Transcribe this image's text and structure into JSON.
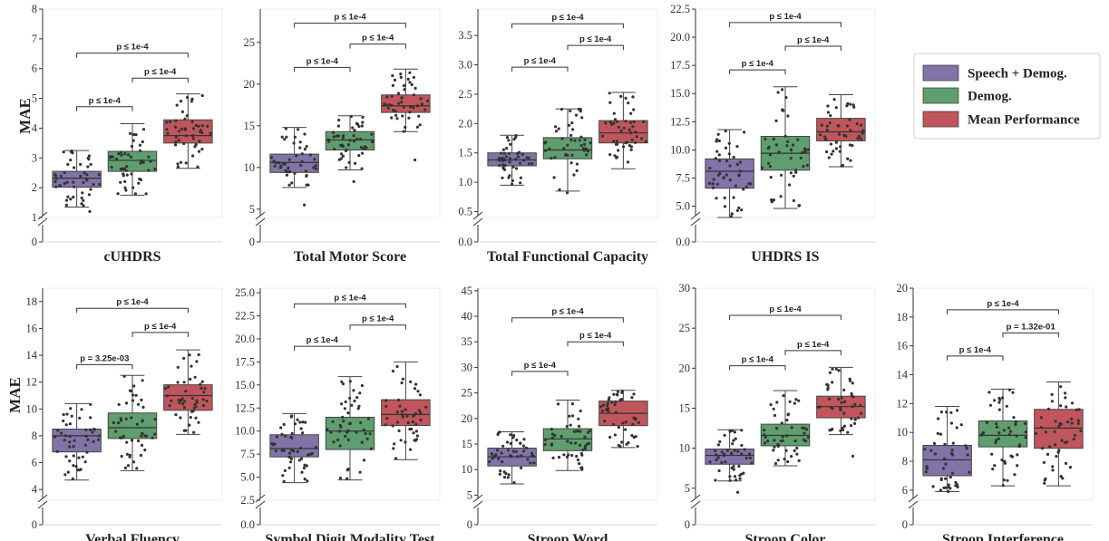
{
  "chart_data": {
    "type": "box",
    "series": [
      {
        "name": "Speech + Demog.",
        "color": "#8074a8"
      },
      {
        "name": "Demog.",
        "color": "#5f9e6e"
      },
      {
        "name": "Mean Performance",
        "color": "#c0565b"
      }
    ],
    "ylabel": "MAE",
    "panels": [
      {
        "title": "cUHDRS",
        "ylim": [
          1,
          8
        ],
        "yticks": [
          1,
          2,
          3,
          4,
          5,
          6,
          7,
          8
        ],
        "tick_fmt": 0,
        "boxes": [
          {
            "q1": 2.02,
            "med": 2.32,
            "q3": 2.55,
            "lo": 1.35,
            "hi": 3.25,
            "min": 1.2
          },
          {
            "q1": 2.55,
            "med": 2.92,
            "q3": 3.22,
            "lo": 1.75,
            "hi": 4.15,
            "min": 1.75
          },
          {
            "q1": 3.5,
            "med": 3.75,
            "q3": 4.28,
            "lo": 2.65,
            "hi": 5.15,
            "min": 2.65
          }
        ],
        "brackets": [
          {
            "from": 0,
            "to": 1,
            "y": 4.72,
            "label": "p ≤ 1e-4"
          },
          {
            "from": 1,
            "to": 2,
            "y": 5.68,
            "label": "p ≤ 1e-4"
          },
          {
            "from": 0,
            "to": 2,
            "y": 6.52,
            "label": "p ≤ 1e-4"
          }
        ]
      },
      {
        "title": "Total Motor Score",
        "ylim": [
          4,
          29
        ],
        "yticks": [
          5,
          10,
          15,
          20,
          25
        ],
        "tick_fmt": 0,
        "boxes": [
          {
            "q1": 9.4,
            "med": 10.6,
            "q3": 11.6,
            "lo": 7.6,
            "hi": 14.8,
            "min": 5.5
          },
          {
            "q1": 12.1,
            "med": 13.3,
            "q3": 14.3,
            "lo": 9.7,
            "hi": 16.2,
            "min": 8.3
          },
          {
            "q1": 16.6,
            "med": 17.4,
            "q3": 18.7,
            "lo": 14.3,
            "hi": 21.8,
            "min": 10.9
          }
        ],
        "brackets": [
          {
            "from": 0,
            "to": 1,
            "y": 22.0,
            "label": "p ≤ 1e-4"
          },
          {
            "from": 1,
            "to": 2,
            "y": 24.8,
            "label": "p ≤ 1e-4"
          },
          {
            "from": 0,
            "to": 2,
            "y": 27.3,
            "label": "p ≤ 1e-4"
          }
        ]
      },
      {
        "title": "Total Functional Capacity",
        "ylim": [
          0.4,
          3.95
        ],
        "yticks": [
          0.5,
          1.0,
          1.5,
          2.0,
          2.5,
          3.0,
          3.5
        ],
        "tick_fmt": 1,
        "boxes": [
          {
            "q1": 1.28,
            "med": 1.38,
            "q3": 1.5,
            "lo": 0.95,
            "hi": 1.8,
            "min": 0.95
          },
          {
            "q1": 1.4,
            "med": 1.55,
            "q3": 1.76,
            "lo": 0.85,
            "hi": 2.25,
            "min": 0.82
          },
          {
            "q1": 1.67,
            "med": 1.84,
            "q3": 2.05,
            "lo": 1.23,
            "hi": 2.53,
            "min": 1.23
          }
        ],
        "brackets": [
          {
            "from": 0,
            "to": 1,
            "y": 2.96,
            "label": "p ≤ 1e-4"
          },
          {
            "from": 1,
            "to": 2,
            "y": 3.33,
            "label": "p ≤ 1e-4"
          },
          {
            "from": 0,
            "to": 2,
            "y": 3.7,
            "label": "p ≤ 1e-4"
          }
        ]
      },
      {
        "title": "UHDRS IS",
        "ylim": [
          4,
          22.5
        ],
        "yticks": [
          5.0,
          7.5,
          10.0,
          12.5,
          15.0,
          17.5,
          20.0,
          22.5
        ],
        "tick_fmt": 1,
        "boxes": [
          {
            "q1": 6.6,
            "med": 8.1,
            "q3": 9.2,
            "lo": 4.0,
            "hi": 11.8,
            "min": 4.0
          },
          {
            "q1": 8.2,
            "med": 9.7,
            "q3": 11.2,
            "lo": 4.8,
            "hi": 15.6,
            "min": 4.8
          },
          {
            "q1": 10.8,
            "med": 11.6,
            "q3": 12.8,
            "lo": 8.5,
            "hi": 14.9,
            "min": 8.5
          }
        ],
        "brackets": [
          {
            "from": 0,
            "to": 1,
            "y": 17.1,
            "label": "p ≤ 1e-4"
          },
          {
            "from": 1,
            "to": 2,
            "y": 19.2,
            "label": "p ≤ 1e-4"
          },
          {
            "from": 0,
            "to": 2,
            "y": 21.3,
            "label": "p ≤ 1e-4"
          }
        ]
      },
      {
        "title": "Verbal Fluency",
        "ylim": [
          3.2,
          19
        ],
        "yticks": [
          4,
          6,
          8,
          10,
          12,
          14,
          16,
          18
        ],
        "tick_fmt": 0,
        "boxes": [
          {
            "q1": 6.8,
            "med": 8.0,
            "q3": 8.5,
            "lo": 4.7,
            "hi": 10.4,
            "min": 4.7
          },
          {
            "q1": 7.8,
            "med": 8.6,
            "q3": 9.7,
            "lo": 5.4,
            "hi": 12.5,
            "min": 5.4
          },
          {
            "q1": 9.9,
            "med": 11.0,
            "q3": 11.8,
            "lo": 8.1,
            "hi": 14.4,
            "min": 8.1
          }
        ],
        "brackets": [
          {
            "from": 0,
            "to": 1,
            "y": 13.3,
            "label": "p = 3.25e-03"
          },
          {
            "from": 1,
            "to": 2,
            "y": 15.7,
            "label": "p ≤ 1e-4"
          },
          {
            "from": 0,
            "to": 2,
            "y": 17.5,
            "label": "p ≤ 1e-4"
          }
        ]
      },
      {
        "title": "Symbol Digit Modality Test",
        "ylim": [
          2.5,
          25.5
        ],
        "yticks": [
          2.5,
          5.0,
          7.5,
          10.0,
          12.5,
          15.0,
          17.5,
          20.0,
          22.5,
          25.0
        ],
        "tick_fmt": 1,
        "boxes": [
          {
            "q1": 7.2,
            "med": 8.1,
            "q3": 9.6,
            "lo": 4.4,
            "hi": 11.9,
            "min": 4.4
          },
          {
            "q1": 8.0,
            "med": 10.0,
            "q3": 11.5,
            "lo": 4.7,
            "hi": 15.9,
            "min": 4.7
          },
          {
            "q1": 10.6,
            "med": 11.8,
            "q3": 13.4,
            "lo": 6.9,
            "hi": 17.5,
            "min": 6.9
          }
        ],
        "brackets": [
          {
            "from": 0,
            "to": 1,
            "y": 19.2,
            "label": "p ≤ 1e-4"
          },
          {
            "from": 1,
            "to": 2,
            "y": 21.5,
            "label": "p ≤ 1e-4"
          },
          {
            "from": 0,
            "to": 2,
            "y": 23.8,
            "label": "p ≤ 1e-4"
          }
        ]
      },
      {
        "title": "Stroop Word",
        "ylim": [
          4,
          45.5
        ],
        "yticks": [
          5,
          10,
          15,
          20,
          25,
          30,
          35,
          40,
          45
        ],
        "tick_fmt": 0,
        "boxes": [
          {
            "q1": 10.7,
            "med": 12.5,
            "q3": 14.2,
            "lo": 7.2,
            "hi": 17.4,
            "min": 7.2
          },
          {
            "q1": 13.7,
            "med": 16.0,
            "q3": 18.0,
            "lo": 9.8,
            "hi": 23.6,
            "min": 9.8
          },
          {
            "q1": 18.6,
            "med": 21.0,
            "q3": 23.4,
            "lo": 14.3,
            "hi": 25.5,
            "min": 14.3
          }
        ],
        "brackets": [
          {
            "from": 0,
            "to": 1,
            "y": 29.2,
            "label": "p ≤ 1e-4"
          },
          {
            "from": 1,
            "to": 2,
            "y": 35.0,
            "label": "p ≤ 1e-4"
          },
          {
            "from": 0,
            "to": 2,
            "y": 39.7,
            "label": "p ≤ 1e-4"
          }
        ]
      },
      {
        "title": "Stroop Color",
        "ylim": [
          3.5,
          30
        ],
        "yticks": [
          5,
          10,
          15,
          20,
          25,
          30
        ],
        "tick_fmt": 0,
        "boxes": [
          {
            "q1": 8.0,
            "med": 9.1,
            "q3": 9.9,
            "lo": 5.9,
            "hi": 12.3,
            "min": 4.5
          },
          {
            "q1": 10.3,
            "med": 11.6,
            "q3": 13.0,
            "lo": 7.8,
            "hi": 17.2,
            "min": 7.8
          },
          {
            "q1": 13.8,
            "med": 15.2,
            "q3": 16.5,
            "lo": 11.7,
            "hi": 20.1,
            "min": 9.0
          }
        ],
        "brackets": [
          {
            "from": 0,
            "to": 1,
            "y": 20.3,
            "label": "p ≤ 1e-4"
          },
          {
            "from": 1,
            "to": 2,
            "y": 22.2,
            "label": "p ≤ 1e-4"
          },
          {
            "from": 0,
            "to": 2,
            "y": 26.6,
            "label": "p ≤ 1e-4"
          }
        ]
      },
      {
        "title": "Stroop Interference",
        "ylim": [
          5.3,
          20
        ],
        "yticks": [
          6,
          8,
          10,
          12,
          14,
          16,
          18,
          20
        ],
        "tick_fmt": 0,
        "boxes": [
          {
            "q1": 7.0,
            "med": 8.1,
            "q3": 9.1,
            "lo": 5.9,
            "hi": 11.8,
            "min": 5.9
          },
          {
            "q1": 9.0,
            "med": 9.8,
            "q3": 10.8,
            "lo": 6.3,
            "hi": 13.0,
            "min": 6.3
          },
          {
            "q1": 8.9,
            "med": 10.3,
            "q3": 11.6,
            "lo": 6.3,
            "hi": 13.5,
            "min": 6.3
          }
        ],
        "brackets": [
          {
            "from": 0,
            "to": 1,
            "y": 15.3,
            "label": "p ≤ 1e-4"
          },
          {
            "from": 1,
            "to": 2,
            "y": 16.9,
            "label": "p = 1.32e-01"
          },
          {
            "from": 0,
            "to": 2,
            "y": 18.5,
            "label": "p ≤ 1e-4"
          }
        ]
      }
    ],
    "legend": {
      "position": "right"
    },
    "grid": false
  }
}
